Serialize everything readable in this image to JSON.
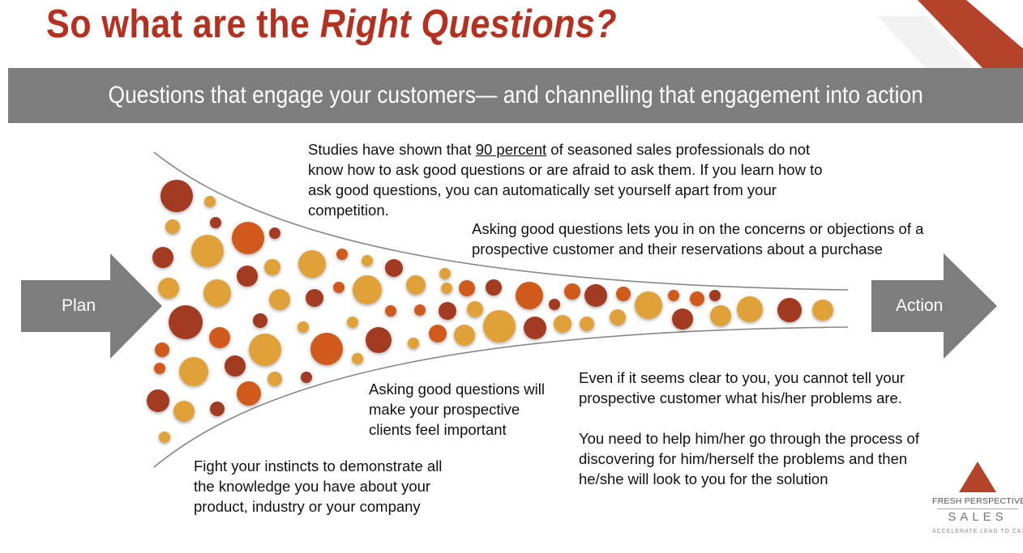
{
  "title": {
    "part1": "So what are the ",
    "part2": "Right Questions?"
  },
  "banner": "Questions that engage your customers— and channelling that engagement into action",
  "arrows": {
    "left": "Plan",
    "right": "Action"
  },
  "texts": {
    "studies_pre": "Studies have shown that ",
    "studies_highlight": "90 percent",
    "studies_post": " of seasoned sales professionals do not know how to ask good questions or are afraid to ask them.  If you learn how to ask good questions, you can automatically set yourself apart from your competition.",
    "concerns": "Asking good questions lets you in on the concerns or objections of a prospective customer and their reservations about a purchase",
    "important": "Asking good questions will make your prospective clients feel important",
    "instincts": "Fight your instincts to demonstrate all the knowledge you have about your product, industry or your company",
    "clear": "Even if it seems clear to you, you cannot tell your prospective customer what his/her problems are.",
    "help": "You need to help him/her go through the process of discovering for him/herself the problems and then he/she will look to you for the solution"
  },
  "logo": {
    "line1": "FRESH PERSPECTIVE",
    "line2": "SALES",
    "tagline": "ACCELERATE LEAD TO CASH"
  },
  "colors": {
    "title": "#b5301f",
    "banner": "#7d7d7d",
    "arrow": "#7d7d7d",
    "dark_red": "#a33a24",
    "orange": "#cf5a1e",
    "gold": "#e0a239",
    "logo_triangle": "#b5432c"
  }
}
